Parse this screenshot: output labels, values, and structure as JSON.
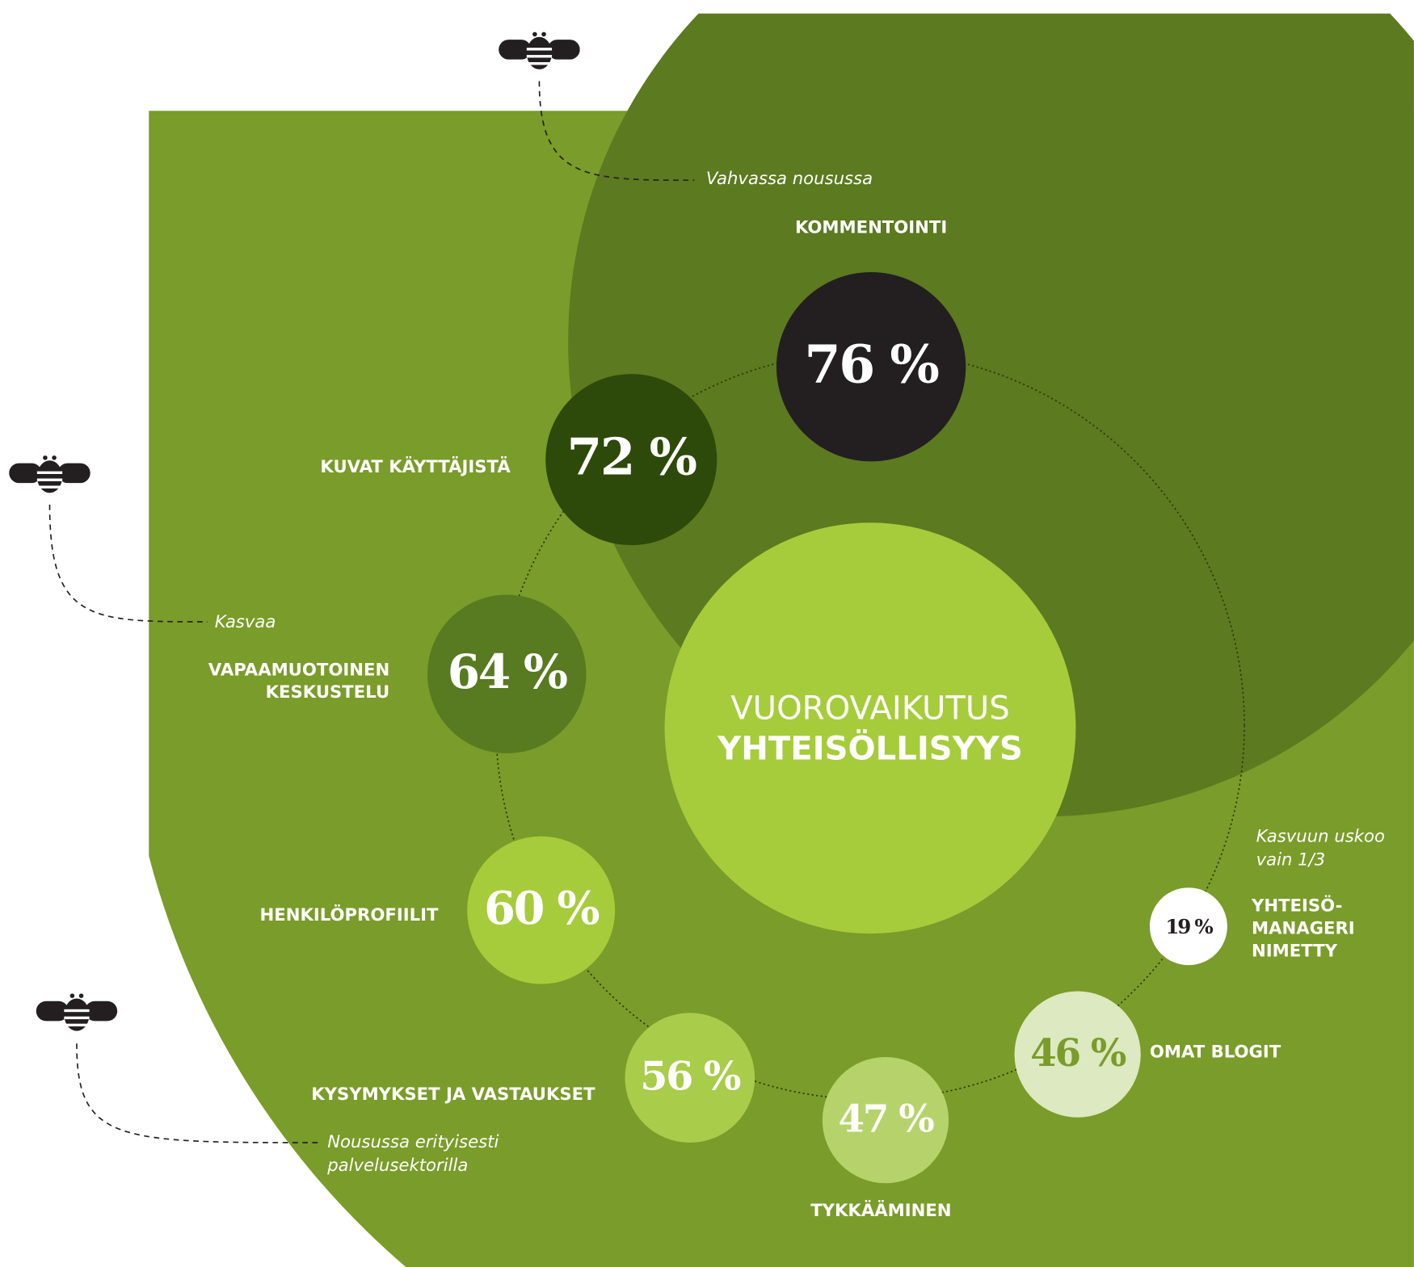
{
  "center": {
    "line1": "VUOROVAIKUTUS",
    "line2": "YHTEISÖLLISYYS"
  },
  "items": [
    {
      "label": [
        "KOMMENTOINTI"
      ],
      "percent": "76 %"
    },
    {
      "label": [
        "KUVAT KÄYTTÄJISTÄ"
      ],
      "percent": "72 %"
    },
    {
      "label": [
        "VAPAAMUOTOINEN",
        "KESKUSTELU"
      ],
      "percent": "64 %"
    },
    {
      "label": [
        "HENKILÖPROFIILIT"
      ],
      "percent": "60 %"
    },
    {
      "label": [
        "KYSYMYKSET JA VASTAUKSET"
      ],
      "percent": "56 %"
    },
    {
      "label": [
        "TYKKÄÄMINEN"
      ],
      "percent": "47 %"
    },
    {
      "label": [
        "OMAT BLOGIT"
      ],
      "percent": "46 %"
    },
    {
      "label": [
        "YHTEISÖ-",
        "MANAGERI",
        "NIMETTY"
      ],
      "percent": "19 %"
    }
  ],
  "notes": [
    [
      "Vahvassa nousussa"
    ],
    [
      "Kasvaa"
    ],
    [
      "Nousussa erityisesti",
      "palvelusektorilla"
    ],
    [
      "Kasvuun uskoo",
      "vain 1/3"
    ]
  ]
}
